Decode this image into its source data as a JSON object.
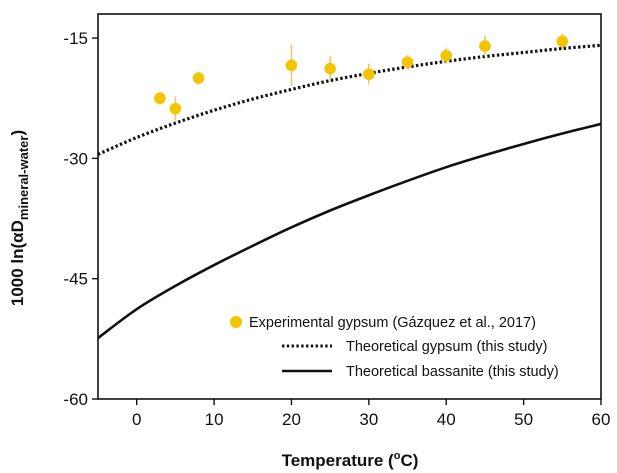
{
  "chart_data": {
    "type": "scatter",
    "xlabel": "Temperature (°C)",
    "xlabel_parts": {
      "main": "Temperature (",
      "sup": "o",
      "end": "C)"
    },
    "ylabel_parts": {
      "main": "1000 ln(αD",
      "sub": "mineral-water",
      "end": ")"
    },
    "xlim": [
      -5,
      60
    ],
    "ylim": [
      -60,
      -12
    ],
    "xticks": [
      0,
      10,
      20,
      30,
      40,
      50,
      60
    ],
    "yticks": [
      -15,
      -30,
      -45,
      -60
    ],
    "grid": false,
    "legend_position": "bottom-right",
    "series": [
      {
        "name": "Experimental gypsum (Gázquez et al., 2017)",
        "kind": "points",
        "color": "#F5C400",
        "points": [
          {
            "x": 3,
            "y": -22.5,
            "err": 0.8
          },
          {
            "x": 5,
            "y": -23.8,
            "err": 1.5
          },
          {
            "x": 8,
            "y": -20.0,
            "err": 0.8
          },
          {
            "x": 20,
            "y": -18.4,
            "err": 2.6
          },
          {
            "x": 25,
            "y": -18.8,
            "err": 1.6
          },
          {
            "x": 30,
            "y": -19.5,
            "err": 1.3
          },
          {
            "x": 35,
            "y": -18.0,
            "err": 0.9
          },
          {
            "x": 40,
            "y": -17.2,
            "err": 1.0
          },
          {
            "x": 45,
            "y": -16.0,
            "err": 1.3
          },
          {
            "x": 55,
            "y": -15.4,
            "err": 1.0
          }
        ]
      },
      {
        "name": "Theoretical gypsum (this study)",
        "kind": "line",
        "style": "dotted",
        "color": "#111111",
        "x": [
          -5,
          0,
          5,
          10,
          15,
          20,
          25,
          30,
          35,
          40,
          45,
          50,
          55,
          60
        ],
        "y": [
          -29.5,
          -27.4,
          -25.6,
          -24.0,
          -22.6,
          -21.4,
          -20.3,
          -19.4,
          -18.6,
          -17.9,
          -17.3,
          -16.8,
          -16.3,
          -15.9
        ]
      },
      {
        "name": "Theoretical bassanite (this study)",
        "kind": "line",
        "style": "solid",
        "color": "#111111",
        "x": [
          -5,
          0,
          5,
          10,
          15,
          20,
          25,
          30,
          35,
          40,
          45,
          50,
          55,
          60
        ],
        "y": [
          -52.4,
          -48.8,
          -45.9,
          -43.3,
          -40.9,
          -38.6,
          -36.5,
          -34.6,
          -32.8,
          -31.1,
          -29.6,
          -28.2,
          -26.9,
          -25.7
        ]
      }
    ],
    "legend": [
      {
        "label": "Experimental gypsum  (Gázquez et al., 2017)",
        "marker": "circle"
      },
      {
        "label": "Theoretical gypsum  (this study)",
        "marker": "dotted-line"
      },
      {
        "label": "Theoretical bassanite (this study)",
        "marker": "solid-line"
      }
    ]
  }
}
